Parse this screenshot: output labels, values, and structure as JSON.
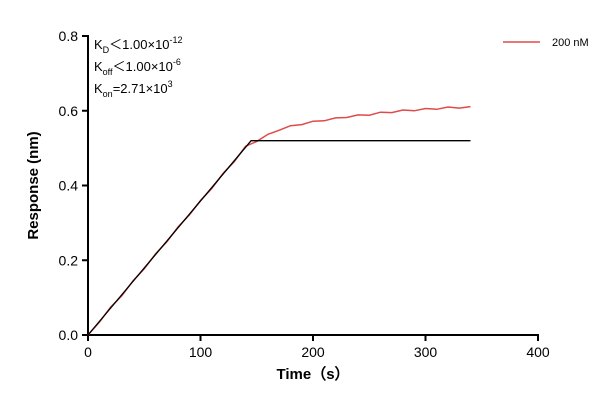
{
  "chart_data": {
    "type": "line",
    "xlabel": "Time（s）",
    "ylabel": "Response (nm)",
    "annotations": [
      [
        "K",
        "D",
        "＜1.00×10",
        "-12"
      ],
      [
        "K",
        "off",
        "＜1.00×10",
        "-6"
      ],
      [
        "K",
        "on",
        "=2.71×10",
        "3"
      ]
    ],
    "xlim": [
      0,
      400
    ],
    "xticks": [
      0,
      100,
      200,
      300,
      400
    ],
    "ylim": [
      0,
      0.8
    ],
    "yticks": [
      {
        "value": 0,
        "label": "0.0"
      },
      0.2,
      0.4,
      0.6,
      0.8
    ],
    "x": [
      0,
      10,
      20,
      30,
      40,
      50,
      60,
      70,
      80,
      90,
      100,
      110,
      120,
      130,
      140,
      150,
      160,
      170,
      180,
      190,
      200,
      210,
      220,
      230,
      240,
      250,
      260,
      270,
      280,
      290,
      300,
      310,
      320,
      330,
      340
    ],
    "series": [
      {
        "name": "200 nM",
        "color": "#e04a4a",
        "values": [
          0,
          0.034,
          0.074,
          0.105,
          0.145,
          0.177,
          0.217,
          0.249,
          0.289,
          0.321,
          0.36,
          0.392,
          0.432,
          0.464,
          0.505,
          0.518,
          0.537,
          0.548,
          0.56,
          0.563,
          0.572,
          0.573,
          0.581,
          0.582,
          0.589,
          0.588,
          0.596,
          0.595,
          0.602,
          0.6,
          0.606,
          0.604,
          0.61,
          0.607,
          0.611
        ]
      }
    ],
    "fit": {
      "color": "#000000",
      "x": [
        0,
        145,
        340
      ],
      "values": [
        0,
        0.52,
        0.52
      ]
    }
  }
}
